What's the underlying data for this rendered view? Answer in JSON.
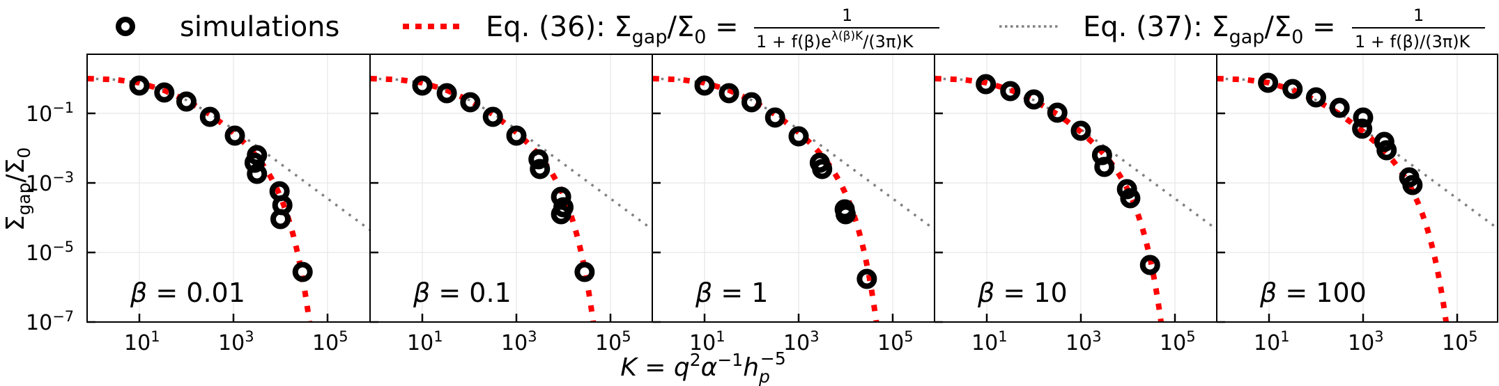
{
  "chart_data": {
    "type": "scatter",
    "title": "",
    "xlabel": "K = q^2 α^-1 h_p^-5",
    "ylabel": "Σ_gap/Σ_0",
    "xscale": "log",
    "yscale": "log",
    "xlim": [
      0.78,
      800000
    ],
    "ylim": [
      1e-07,
      5
    ],
    "grid": true,
    "legend_position": "top, outside, horizontal",
    "x_ticks": [
      "10^1",
      "10^3",
      "10^5"
    ],
    "y_ticks": [
      "10^-1",
      "10^-3",
      "10^-5",
      "10^-7"
    ],
    "legend": [
      {
        "label": "simulations",
        "style": "black open circle"
      },
      {
        "label": "Eq. (36): Σgap/Σ0 = 1 / (1 + f(β) e^{λ(β)K} / (3π)K)",
        "style": "red dotted thick"
      },
      {
        "label": "Eq. (37): Σgap/Σ0 = 1 / (1 + f(β)/(3π)K)",
        "style": "gray dotted thin"
      }
    ],
    "panels": [
      {
        "label": "β = 0.01",
        "lambda_shape": 0.00022,
        "simulations_log10": [
          [
            1.0,
            -0.2
          ],
          [
            1.53,
            -0.4
          ],
          [
            2.0,
            -0.66
          ],
          [
            2.5,
            -1.1
          ],
          [
            3.03,
            -1.64
          ],
          [
            3.5,
            -2.2
          ],
          [
            3.45,
            -2.42
          ],
          [
            3.5,
            -2.74
          ],
          [
            3.98,
            -3.24
          ],
          [
            4.04,
            -3.64
          ],
          [
            4.0,
            -4.04
          ],
          [
            4.47,
            -5.56
          ]
        ]
      },
      {
        "label": "β = 0.1",
        "lambda_shape": 0.00021,
        "simulations_log10": [
          [
            1.0,
            -0.2
          ],
          [
            1.52,
            -0.42
          ],
          [
            2.02,
            -0.68
          ],
          [
            2.5,
            -1.1
          ],
          [
            3.0,
            -1.64
          ],
          [
            3.47,
            -2.32
          ],
          [
            3.5,
            -2.6
          ],
          [
            3.95,
            -3.4
          ],
          [
            4.0,
            -3.7
          ],
          [
            3.95,
            -3.9
          ],
          [
            4.45,
            -5.56
          ]
        ]
      },
      {
        "label": "β = 1",
        "lambda_shape": 0.0002,
        "simulations_log10": [
          [
            1.0,
            -0.2
          ],
          [
            1.52,
            -0.42
          ],
          [
            2.0,
            -0.68
          ],
          [
            2.5,
            -1.12
          ],
          [
            3.0,
            -1.66
          ],
          [
            3.45,
            -2.42
          ],
          [
            3.5,
            -2.6
          ],
          [
            3.98,
            -3.76
          ],
          [
            4.0,
            -3.9
          ],
          [
            4.45,
            -5.76
          ]
        ]
      },
      {
        "label": "β = 10",
        "lambda_shape": 0.000175,
        "simulations_log10": [
          [
            0.98,
            -0.16
          ],
          [
            1.5,
            -0.36
          ],
          [
            2.0,
            -0.6
          ],
          [
            2.5,
            -0.98
          ],
          [
            3.0,
            -1.5
          ],
          [
            3.45,
            -2.2
          ],
          [
            3.5,
            -2.54
          ],
          [
            3.98,
            -3.18
          ],
          [
            4.05,
            -3.44
          ],
          [
            4.47,
            -5.36
          ]
        ]
      },
      {
        "label": "β = 100",
        "lambda_shape": 0.00015,
        "simulations_log10": [
          [
            0.98,
            -0.12
          ],
          [
            1.5,
            -0.3
          ],
          [
            2.0,
            -0.54
          ],
          [
            2.5,
            -0.84
          ],
          [
            3.0,
            -1.12
          ],
          [
            2.98,
            -1.44
          ],
          [
            3.45,
            -1.82
          ],
          [
            3.5,
            -2.06
          ],
          [
            3.98,
            -2.84
          ],
          [
            4.05,
            -3.06
          ]
        ]
      }
    ],
    "eq37_log10_curve_shared": [
      [
        -0.1,
        0.0
      ],
      [
        0.5,
        -0.03
      ],
      [
        1.0,
        -0.12
      ],
      [
        1.5,
        -0.32
      ],
      [
        2.0,
        -0.62
      ],
      [
        2.5,
        -1.0
      ],
      [
        3.0,
        -1.46
      ],
      [
        3.5,
        -1.95
      ],
      [
        4.0,
        -2.45
      ],
      [
        4.5,
        -2.95
      ],
      [
        5.0,
        -3.45
      ],
      [
        5.9,
        -4.35
      ]
    ]
  },
  "legend": {
    "sim_label": "simulations",
    "eq36_prefix": "Eq. (36): Σ",
    "eq37_prefix": "Eq. (37): Σ",
    "sub_gap": "gap",
    "slash_sigma": "/Σ",
    "sub_zero": "0",
    "equals": " = ",
    "numerator": "1",
    "eq36_denominator": "1 + f(β)e",
    "eq36_exp": "λ(β)K",
    "eq36_denominator_tail": "/(3π)K",
    "eq37_denominator": "1 + f(β)/(3π)K"
  },
  "axes": {
    "ylabel_main": "Σ",
    "ylabel_sub1": "gap",
    "ylabel_mid": "/Σ",
    "ylabel_sub2": "0",
    "xlabel_main": "K = q",
    "xlabel_sup1": "2",
    "xlabel_alpha": "α",
    "xlabel_sup2": "−1",
    "xlabel_h": "h",
    "xlabel_sub": "p",
    "xlabel_sup3": "−5",
    "ytick_base": "10",
    "yticks": [
      "−1",
      "−3",
      "−5",
      "−7"
    ],
    "xtick_base": "10",
    "xticks": [
      "1",
      "3",
      "5"
    ]
  },
  "colors": {
    "sim": "#000000",
    "eq36": "#ff0000",
    "eq37": "#808080",
    "grid": "#e6e6e6",
    "frame": "#000000"
  }
}
